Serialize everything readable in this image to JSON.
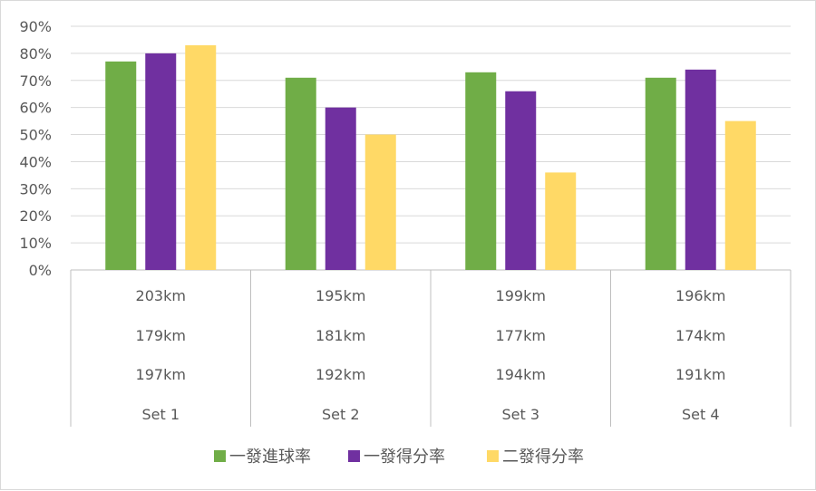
{
  "chart_data": {
    "type": "bar",
    "categories": [
      "Set 1",
      "Set 2",
      "Set 3",
      "Set 4"
    ],
    "series": [
      {
        "name": "一發進球率",
        "color": "#70ad47",
        "values": [
          77,
          71,
          73,
          71
        ]
      },
      {
        "name": "一發得分率",
        "color": "#7030a0",
        "values": [
          80,
          60,
          66,
          74
        ]
      },
      {
        "name": "二發得分率",
        "color": "#ffd966",
        "values": [
          83,
          50,
          36,
          55
        ]
      }
    ],
    "table_rows": [
      [
        "203km",
        "195km",
        "199km",
        "196km"
      ],
      [
        "179km",
        "181km",
        "177km",
        "174km"
      ],
      [
        "197km",
        "192km",
        "194km",
        "191km"
      ]
    ],
    "ylim": [
      0,
      90
    ],
    "yticks": [
      0,
      10,
      20,
      30,
      40,
      50,
      60,
      70,
      80,
      90
    ],
    "y_tick_suffix": "%",
    "grid": true,
    "legend_position": "bottom",
    "gridline_color": "#d9d9d9",
    "axis_color": "#bfbfbf"
  }
}
